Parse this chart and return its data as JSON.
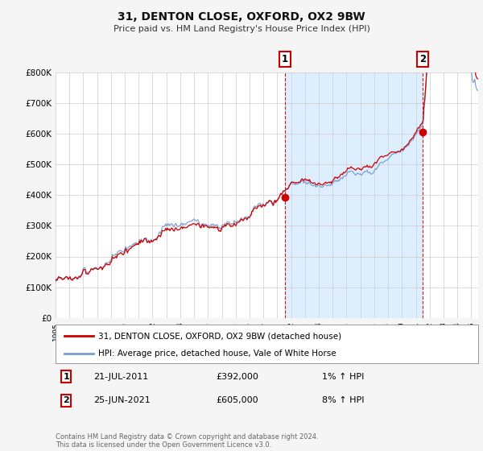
{
  "title": "31, DENTON CLOSE, OXFORD, OX2 9BW",
  "subtitle": "Price paid vs. HM Land Registry's House Price Index (HPI)",
  "background_color": "#f5f5f5",
  "plot_bg_color": "#ffffff",
  "highlight_color": "#ddeeff",
  "ylim": [
    0,
    800000
  ],
  "yticks": [
    0,
    100000,
    200000,
    300000,
    400000,
    500000,
    600000,
    700000,
    800000
  ],
  "ytick_labels": [
    "£0",
    "£100K",
    "£200K",
    "£300K",
    "£400K",
    "£500K",
    "£600K",
    "£700K",
    "£800K"
  ],
  "purchase_year1": 2011.55,
  "purchase_year2": 2021.48,
  "purchase_price1": 392000,
  "purchase_price2": 605000,
  "start_year": 1995,
  "end_year": 2025.5,
  "legend_line1": "31, DENTON CLOSE, OXFORD, OX2 9BW (detached house)",
  "legend_line2": "HPI: Average price, detached house, Vale of White Horse",
  "annotation1_label": "1",
  "annotation1_date": "21-JUL-2011",
  "annotation1_price": "£392,000",
  "annotation1_hpi": "1% ↑ HPI",
  "annotation2_label": "2",
  "annotation2_date": "25-JUN-2021",
  "annotation2_price": "£605,000",
  "annotation2_hpi": "8% ↑ HPI",
  "footer": "Contains HM Land Registry data © Crown copyright and database right 2024.\nThis data is licensed under the Open Government Licence v3.0.",
  "red_color": "#cc0000",
  "blue_color": "#7799cc",
  "grid_color": "#cccccc"
}
